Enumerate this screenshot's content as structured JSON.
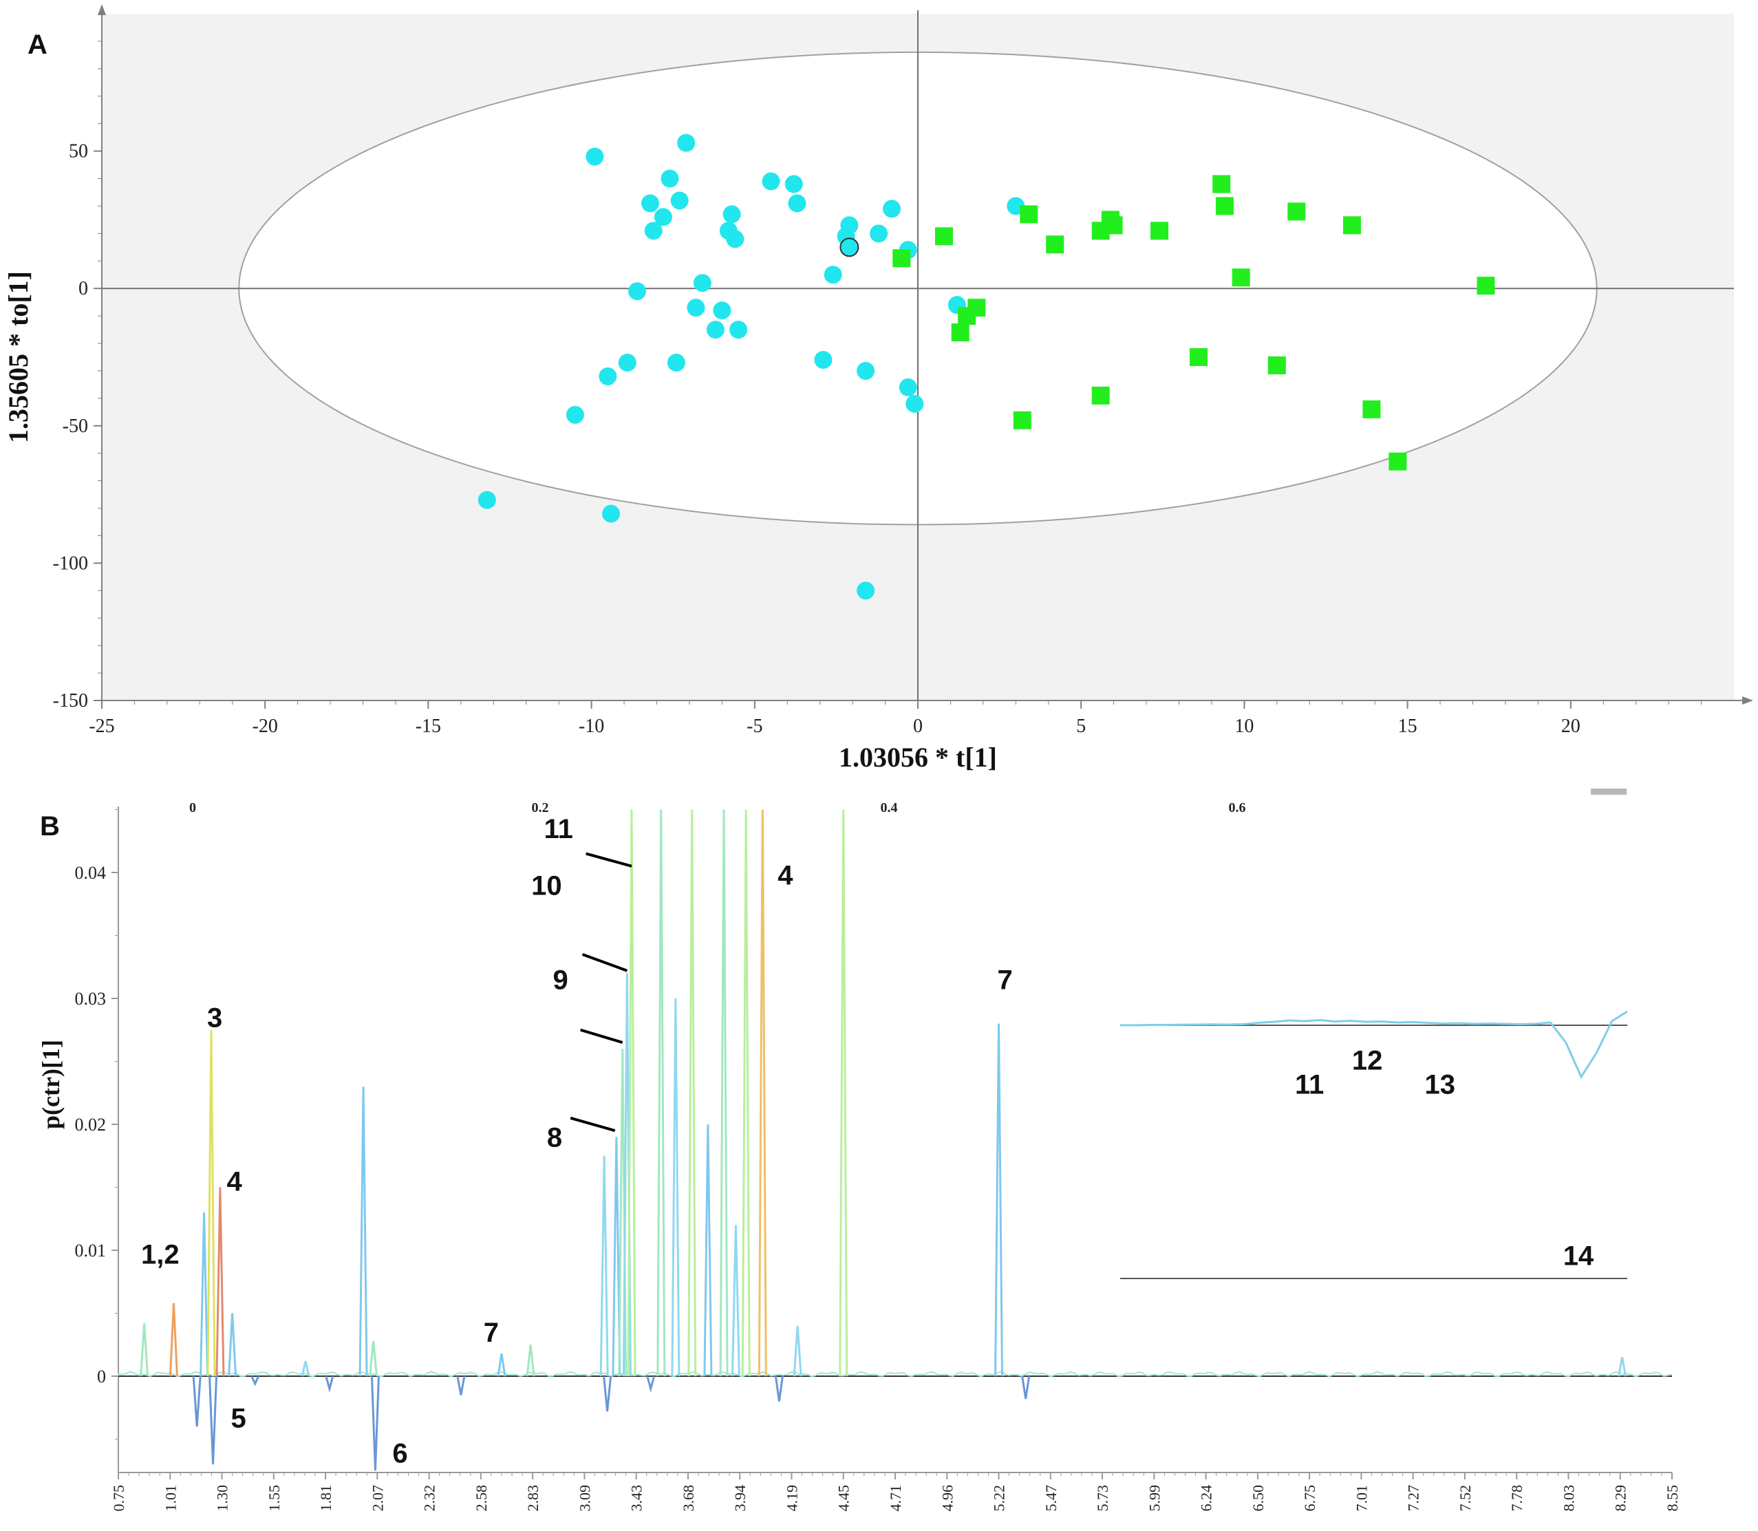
{
  "chart_data": [
    {
      "type": "scatter",
      "panel_label": "A",
      "xlabel": "1.03056 * t[1]",
      "ylabel": "1.35605 * to[1]",
      "xlim": [
        -25,
        25
      ],
      "ylim": [
        -150,
        100
      ],
      "x_ticks": [
        -25,
        -20,
        -15,
        -10,
        -5,
        0,
        5,
        10,
        15,
        20
      ],
      "y_ticks": [
        -150,
        -100,
        -50,
        0,
        50
      ],
      "ellipse": {
        "center": [
          0,
          0
        ],
        "rx": 20.8,
        "ry": 86
      },
      "grid": false,
      "colors": {
        "plot_bg": "#f2f2f2",
        "circle": "#22e6ee",
        "square": "#22ee1e"
      },
      "series": [
        {
          "marker": "circle",
          "color": "#22e6ee",
          "x": [
            -9.9,
            -7.1,
            -7.6,
            -8.2,
            -7.3,
            -7.8,
            -8.1,
            -5.7,
            -5.8,
            -5.6,
            -4.5,
            -3.8,
            -3.7,
            -2.1,
            -2.2,
            -0.8,
            -1.2,
            -0.3,
            -2.6,
            -6.6,
            -8.6,
            -6.8,
            -6.0,
            -6.2,
            -5.5,
            -7.4,
            -8.9,
            -9.5,
            -10.5,
            -2.9,
            -1.6,
            -0.3,
            -0.1,
            -13.2,
            -9.4,
            -1.6,
            1.2,
            3.0
          ],
          "y": [
            48,
            53,
            40,
            31,
            32,
            26,
            21,
            27,
            21,
            18,
            39,
            38,
            31,
            23,
            19,
            29,
            20,
            14,
            5,
            2,
            -1,
            -7,
            -8,
            -15,
            -15,
            -27,
            -27,
            -32,
            -46,
            -26,
            -30,
            -36,
            -42,
            -77,
            -82,
            -110,
            -6,
            30
          ]
        },
        {
          "marker": "square",
          "color": "#22ee1e",
          "x": [
            0.8,
            -0.5,
            3.4,
            4.2,
            5.6,
            5.9,
            6.0,
            7.4,
            9.3,
            9.4,
            11.6,
            13.3,
            9.9,
            17.4,
            1.8,
            1.5,
            1.3,
            8.6,
            11.0,
            5.6,
            3.2,
            13.9,
            14.7
          ],
          "y": [
            19,
            11,
            27,
            16,
            21,
            25,
            23,
            21,
            38,
            30,
            28,
            23,
            4,
            1,
            -7,
            -10,
            -16,
            -25,
            -28,
            -39,
            -48,
            -44,
            -63
          ]
        }
      ],
      "highlight_point": {
        "x": -2.1,
        "y": 15
      }
    },
    {
      "type": "line",
      "panel_label": "B",
      "ylabel": "p(ctr)[1]",
      "x_tick_labels": [
        "0.75",
        "1.01",
        "1.30",
        "1.55",
        "1.81",
        "2.07",
        "2.32",
        "2.58",
        "2.83",
        "3.09",
        "3.43",
        "3.68",
        "3.94",
        "4.19",
        "4.45",
        "4.71",
        "4.96",
        "5.22",
        "5.47",
        "5.73",
        "5.99",
        "6.24",
        "6.50",
        "6.75",
        "7.01",
        "7.27",
        "7.52",
        "7.78",
        "8.03",
        "8.29",
        "8.55"
      ],
      "y_ticks": [
        "0",
        "0.01",
        "0.02",
        "0.03",
        "0.04"
      ],
      "ylim": [
        -0.0075,
        0.045
      ],
      "color_scale_labels": [
        "0",
        "0.2",
        "0.4",
        "0.6"
      ],
      "peaks": [
        {
          "x": 0.88,
          "y": 0.0042
        },
        {
          "x": 1.03,
          "y": 0.0058,
          "color": "#f0a060"
        },
        {
          "x": 1.16,
          "y": -0.004
        },
        {
          "x": 1.2,
          "y": 0.013
        },
        {
          "x": 1.24,
          "y": 0.0275,
          "color": "#e0e060"
        },
        {
          "x": 1.29,
          "y": 0.015,
          "color": "#e08a70"
        },
        {
          "x": 1.25,
          "y": -0.007
        },
        {
          "x": 1.35,
          "y": 0.005
        },
        {
          "x": 1.46,
          "y": -0.0006
        },
        {
          "x": 1.71,
          "y": 0.0012
        },
        {
          "x": 1.83,
          "y": -0.001
        },
        {
          "x": 2.0,
          "y": 0.023
        },
        {
          "x": 2.05,
          "y": 0.0028
        },
        {
          "x": 2.06,
          "y": -0.0075
        },
        {
          "x": 2.48,
          "y": -0.0015
        },
        {
          "x": 2.68,
          "y": 0.0018
        },
        {
          "x": 2.82,
          "y": 0.0025
        },
        {
          "x": 3.22,
          "y": 0.0175
        },
        {
          "x": 3.24,
          "y": -0.0028
        },
        {
          "x": 3.3,
          "y": 0.019
        },
        {
          "x": 3.34,
          "y": 0.026
        },
        {
          "x": 3.37,
          "y": 0.032
        },
        {
          "x": 3.4,
          "y": 0.045
        },
        {
          "x": 3.5,
          "y": -0.001
        },
        {
          "x": 3.55,
          "y": 0.045
        },
        {
          "x": 3.62,
          "y": 0.03
        },
        {
          "x": 3.7,
          "y": 0.045
        },
        {
          "x": 3.78,
          "y": 0.02
        },
        {
          "x": 3.86,
          "y": 0.045
        },
        {
          "x": 3.92,
          "y": 0.012
        },
        {
          "x": 3.97,
          "y": 0.045
        },
        {
          "x": 4.05,
          "y": 0.045,
          "color": "#f0c060"
        },
        {
          "x": 4.13,
          "y": -0.002
        },
        {
          "x": 4.22,
          "y": 0.004
        },
        {
          "x": 4.45,
          "y": 0.045
        },
        {
          "x": 5.22,
          "y": 0.028
        },
        {
          "x": 5.35,
          "y": -0.0018
        },
        {
          "x": 8.3,
          "y": 0.0015
        }
      ],
      "inset": {
        "trace": [
          0,
          0,
          0.05,
          0.05,
          0.08,
          0.1,
          0.12,
          0.1,
          0.15,
          0.35,
          0.5,
          0.7,
          0.6,
          0.75,
          0.55,
          0.65,
          0.5,
          0.55,
          0.4,
          0.45,
          0.35,
          0.25,
          0.3,
          0.2,
          0.25,
          0.2,
          0.15,
          0.2,
          0.4,
          -2.5,
          -7.5,
          -4,
          0.6,
          2
        ]
      },
      "annotations": [
        {
          "text": "1,2",
          "x": 0.96,
          "y": 0.0097
        },
        {
          "text": "3",
          "x": 1.26,
          "y": 0.0285
        },
        {
          "text": "4",
          "x": 1.36,
          "y": 0.0155
        },
        {
          "text": "5",
          "x": 1.38,
          "y": -0.0033
        },
        {
          "text": "6",
          "x": 2.18,
          "y": -0.0061
        },
        {
          "text": "7",
          "x": 2.63,
          "y": 0.0035
        },
        {
          "text": "8",
          "x": 2.94,
          "y": 0.019
        },
        {
          "text": "9",
          "x": 2.97,
          "y": 0.0315
        },
        {
          "text": "10",
          "x": 2.9,
          "y": 0.039
        },
        {
          "text": "11",
          "x": 2.96,
          "y": 0.0435
        },
        {
          "text": "4",
          "x": 4.16,
          "y": 0.0398
        },
        {
          "text": "7",
          "x": 5.25,
          "y": 0.0315
        },
        {
          "text": "11",
          "x": 6.75,
          "y": 0.0232
        },
        {
          "text": "12",
          "x": 7.04,
          "y": 0.0251
        },
        {
          "text": "13",
          "x": 7.4,
          "y": 0.0232
        },
        {
          "text": "14",
          "x": 8.08,
          "y": 0.0096
        }
      ],
      "leader_lines": [
        {
          "from": [
            3.02,
            0.0205
          ],
          "to": [
            3.29,
            0.0195
          ]
        },
        {
          "from": [
            3.07,
            0.0275
          ],
          "to": [
            3.34,
            0.0265
          ]
        },
        {
          "from": [
            3.08,
            0.0335
          ],
          "to": [
            3.37,
            0.0322
          ]
        },
        {
          "from": [
            3.1,
            0.0415
          ],
          "to": [
            3.4,
            0.0405
          ]
        }
      ]
    }
  ]
}
